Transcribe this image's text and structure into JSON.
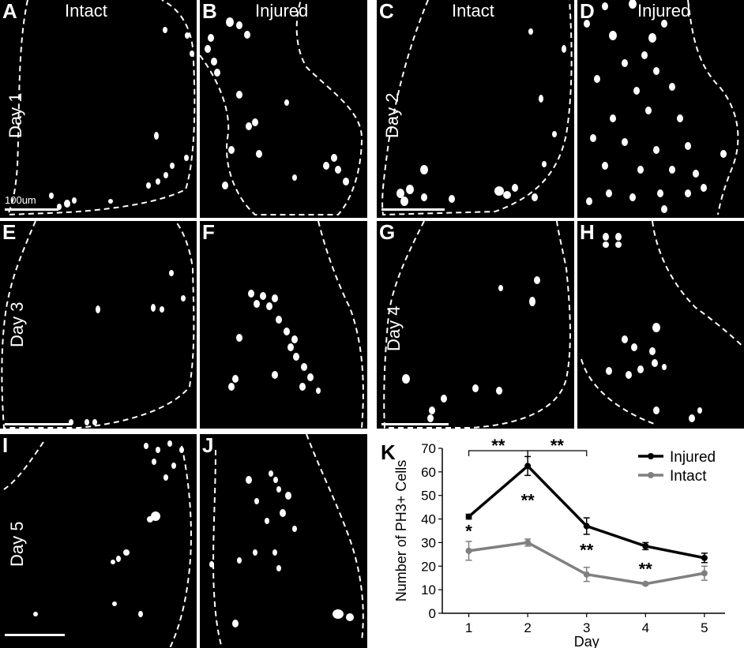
{
  "figure": {
    "panels": [
      {
        "id": "A",
        "letter": "A",
        "header": "Intact",
        "day_label": "Day 1",
        "scale_text": "100um"
      },
      {
        "id": "B",
        "letter": "B",
        "header": "Injured"
      },
      {
        "id": "C",
        "letter": "C",
        "header": "Intact",
        "day_label": "Day 2"
      },
      {
        "id": "D",
        "letter": "D",
        "header": "Injured"
      },
      {
        "id": "E",
        "letter": "E",
        "day_label": "Day 3"
      },
      {
        "id": "F",
        "letter": "F"
      },
      {
        "id": "G",
        "letter": "G",
        "day_label": "Day 4"
      },
      {
        "id": "H",
        "letter": "H"
      },
      {
        "id": "I",
        "letter": "I",
        "day_label": "Day 5"
      },
      {
        "id": "J",
        "letter": "J"
      }
    ],
    "colors": {
      "micrograph_bg": "#000000",
      "nucleus": "#ffffff",
      "outline": "#ffffff"
    }
  },
  "chart_data": {
    "panel_letter": "K",
    "type": "line",
    "xlabel": "Day",
    "ylabel": "Number of PH3+ Cells",
    "x": [
      1,
      2,
      3,
      4,
      5
    ],
    "ylim": [
      0,
      70
    ],
    "yticks": [
      0,
      10,
      20,
      30,
      40,
      50,
      60,
      70
    ],
    "grid": false,
    "legend_position": "top-right",
    "series": [
      {
        "name": "Injured",
        "color": "#000000",
        "values": [
          41,
          62.5,
          37,
          28.5,
          23.5
        ],
        "errors": [
          1,
          4,
          3.5,
          1.5,
          2
        ]
      },
      {
        "name": "Intact",
        "color": "#808080",
        "values": [
          26.5,
          30,
          16.5,
          12.5,
          17
        ],
        "errors": [
          4,
          1.5,
          3,
          0.5,
          3
        ]
      }
    ],
    "annotations": [
      {
        "text": "*",
        "x": 1,
        "y": 35
      },
      {
        "text": "**",
        "x": 2,
        "y": 48
      },
      {
        "text": "**",
        "x": 3,
        "y": 27
      },
      {
        "text": "**",
        "x": 4,
        "y": 19
      }
    ],
    "brackets": [
      {
        "from": 1,
        "to": 2,
        "text": "**"
      },
      {
        "from": 2,
        "to": 3,
        "text": "**"
      }
    ]
  }
}
